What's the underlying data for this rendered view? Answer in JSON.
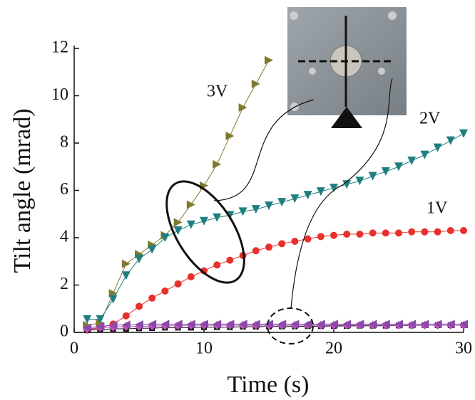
{
  "chart_data": {
    "type": "line",
    "x_label": "Time (s)",
    "y_label": "Tilt angle (mrad)",
    "x": [
      1,
      2,
      3,
      4,
      5,
      6,
      7,
      8,
      9,
      10,
      11,
      12,
      13,
      14,
      15,
      16,
      17,
      18,
      19,
      20,
      21,
      22,
      23,
      24,
      25,
      26,
      27,
      28,
      29,
      30
    ],
    "series": [
      {
        "name": "3V",
        "color": "#7f7a2e",
        "marker": "triangle-right",
        "values": [
          0.3,
          0.4,
          1.65,
          2.9,
          3.3,
          3.7,
          4.1,
          4.65,
          5.4,
          6.2,
          7.1,
          8.3,
          9.5,
          10.5,
          11.5,
          null,
          null,
          null,
          null,
          null,
          null,
          null,
          null,
          null,
          null,
          null,
          null,
          null,
          null,
          null
        ]
      },
      {
        "name": "2V",
        "color": "#1f7f80",
        "marker": "triangle-down",
        "values": [
          0.55,
          0.55,
          1.4,
          2.4,
          3.1,
          3.5,
          4.0,
          4.3,
          4.55,
          4.7,
          4.85,
          4.95,
          5.1,
          5.2,
          5.35,
          5.5,
          5.65,
          5.8,
          5.95,
          6.1,
          6.25,
          6.4,
          6.6,
          6.8,
          7.0,
          7.25,
          7.5,
          7.8,
          8.1,
          8.4
        ]
      },
      {
        "name": "1V",
        "color": "#e8302c",
        "marker": "circle",
        "values": [
          0.1,
          0.2,
          0.35,
          0.7,
          1.1,
          1.45,
          1.75,
          2.05,
          2.35,
          2.6,
          2.85,
          3.05,
          3.25,
          3.45,
          3.6,
          3.75,
          3.85,
          3.95,
          4.05,
          4.1,
          4.15,
          4.15,
          4.2,
          4.2,
          4.2,
          4.25,
          4.25,
          4.25,
          4.3,
          4.3
        ]
      },
      {
        "color": "#111111",
        "marker": "square",
        "values": [
          0.1,
          0.12,
          0.15,
          0.15,
          0.17,
          0.18,
          0.2,
          0.2,
          0.2,
          0.22,
          0.22,
          0.22,
          0.24,
          0.24,
          0.25,
          0.25,
          0.25,
          0.26,
          0.26,
          0.27,
          0.27,
          0.28,
          0.28,
          0.28,
          0.29,
          0.29,
          0.3,
          0.3,
          0.3,
          0.3
        ]
      },
      {
        "color": "#c04fc0",
        "marker": "diamond",
        "values": [
          0.15,
          0.2,
          0.22,
          0.25,
          0.25,
          0.27,
          0.28,
          0.28,
          0.3,
          0.3,
          0.3,
          0.3,
          0.3,
          0.3,
          0.3,
          0.3,
          0.3,
          0.3,
          0.3,
          0.3,
          0.3,
          0.3,
          0.3,
          0.3,
          0.3,
          0.3,
          0.3,
          0.3,
          0.3,
          0.3
        ]
      },
      {
        "color": "#8a4aa8",
        "marker": "triangle-left",
        "values": [
          0.2,
          0.25,
          0.3,
          0.32,
          0.33,
          0.35,
          0.35,
          0.35,
          0.35,
          0.35,
          0.35,
          0.35,
          0.35,
          0.35,
          0.35,
          0.35,
          0.35,
          0.35,
          0.35,
          0.35,
          0.35,
          0.35,
          0.35,
          0.35,
          0.35,
          0.35,
          0.35,
          0.35,
          0.35,
          0.35
        ]
      }
    ],
    "xlim": [
      0,
      30
    ],
    "xticks": [
      0,
      10,
      20,
      30
    ],
    "ylim": [
      0,
      12
    ],
    "yticks": [
      0,
      2,
      4,
      6,
      8,
      10,
      12
    ]
  }
}
